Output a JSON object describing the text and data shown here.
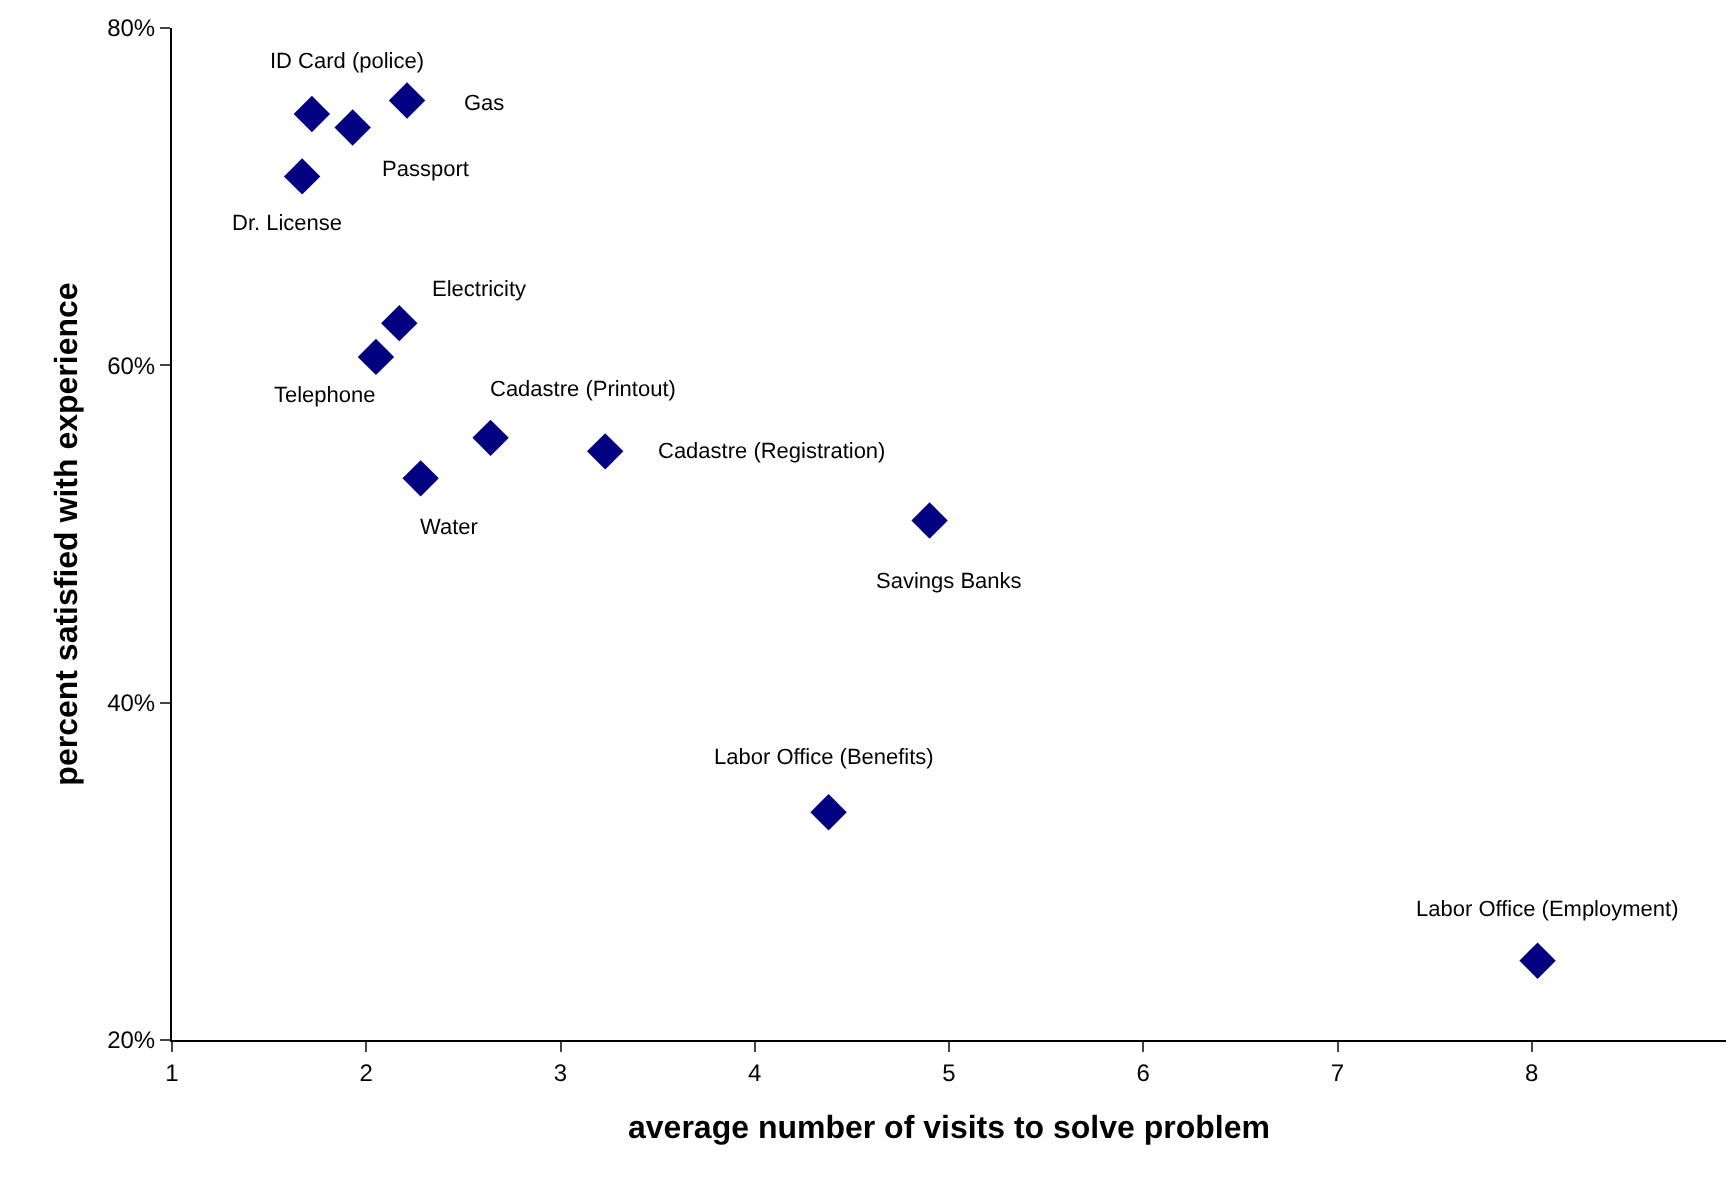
{
  "chart_data": {
    "type": "scatter",
    "xlabel": "average number of visits to solve problem",
    "ylabel": "percent satisfied with experience",
    "x": [
      1.72,
      1.93,
      2.21,
      1.67,
      2.17,
      2.05,
      2.64,
      3.23,
      2.28,
      4.9,
      4.38,
      8.03
    ],
    "series": [
      {
        "color": "#000080",
        "values": [
          74.9,
          74.1,
          75.7,
          71.2,
          62.5,
          60.5,
          55.7,
          54.9,
          53.3,
          50.8,
          33.5,
          24.7
        ]
      }
    ],
    "marker": "diamond",
    "xlim": [
      1,
      9
    ],
    "xticks": [
      1,
      2,
      3,
      4,
      5,
      6,
      7,
      8
    ],
    "ylim": [
      20,
      80
    ],
    "yticks": [
      {
        "value": 20,
        "label": "20%"
      },
      {
        "value": 40,
        "label": "40%"
      },
      {
        "value": 60,
        "label": "60%"
      },
      {
        "value": 80,
        "label": "80%"
      }
    ],
    "annotations": [
      {
        "text": "ID Card (police)",
        "x": 1.72,
        "y": 74.9
      },
      {
        "text": "Passport",
        "x": 1.93,
        "y": 74.1
      },
      {
        "text": "Gas",
        "x": 2.21,
        "y": 75.7
      },
      {
        "text": "Dr. License",
        "x": 1.67,
        "y": 71.2
      },
      {
        "text": "Electricity",
        "x": 2.17,
        "y": 62.5
      },
      {
        "text": "Telephone",
        "x": 2.05,
        "y": 60.5
      },
      {
        "text": "Cadastre (Printout)",
        "x": 2.64,
        "y": 55.7
      },
      {
        "text": "Cadastre (Registration)",
        "x": 3.23,
        "y": 54.9
      },
      {
        "text": "Water",
        "x": 2.28,
        "y": 53.3
      },
      {
        "text": "Savings Banks",
        "x": 4.9,
        "y": 50.8
      },
      {
        "text": "Labor Office (Benefits)",
        "x": 4.38,
        "y": 33.5
      },
      {
        "text": "Labor Office (Employment)",
        "x": 8.03,
        "y": 24.7
      }
    ]
  }
}
